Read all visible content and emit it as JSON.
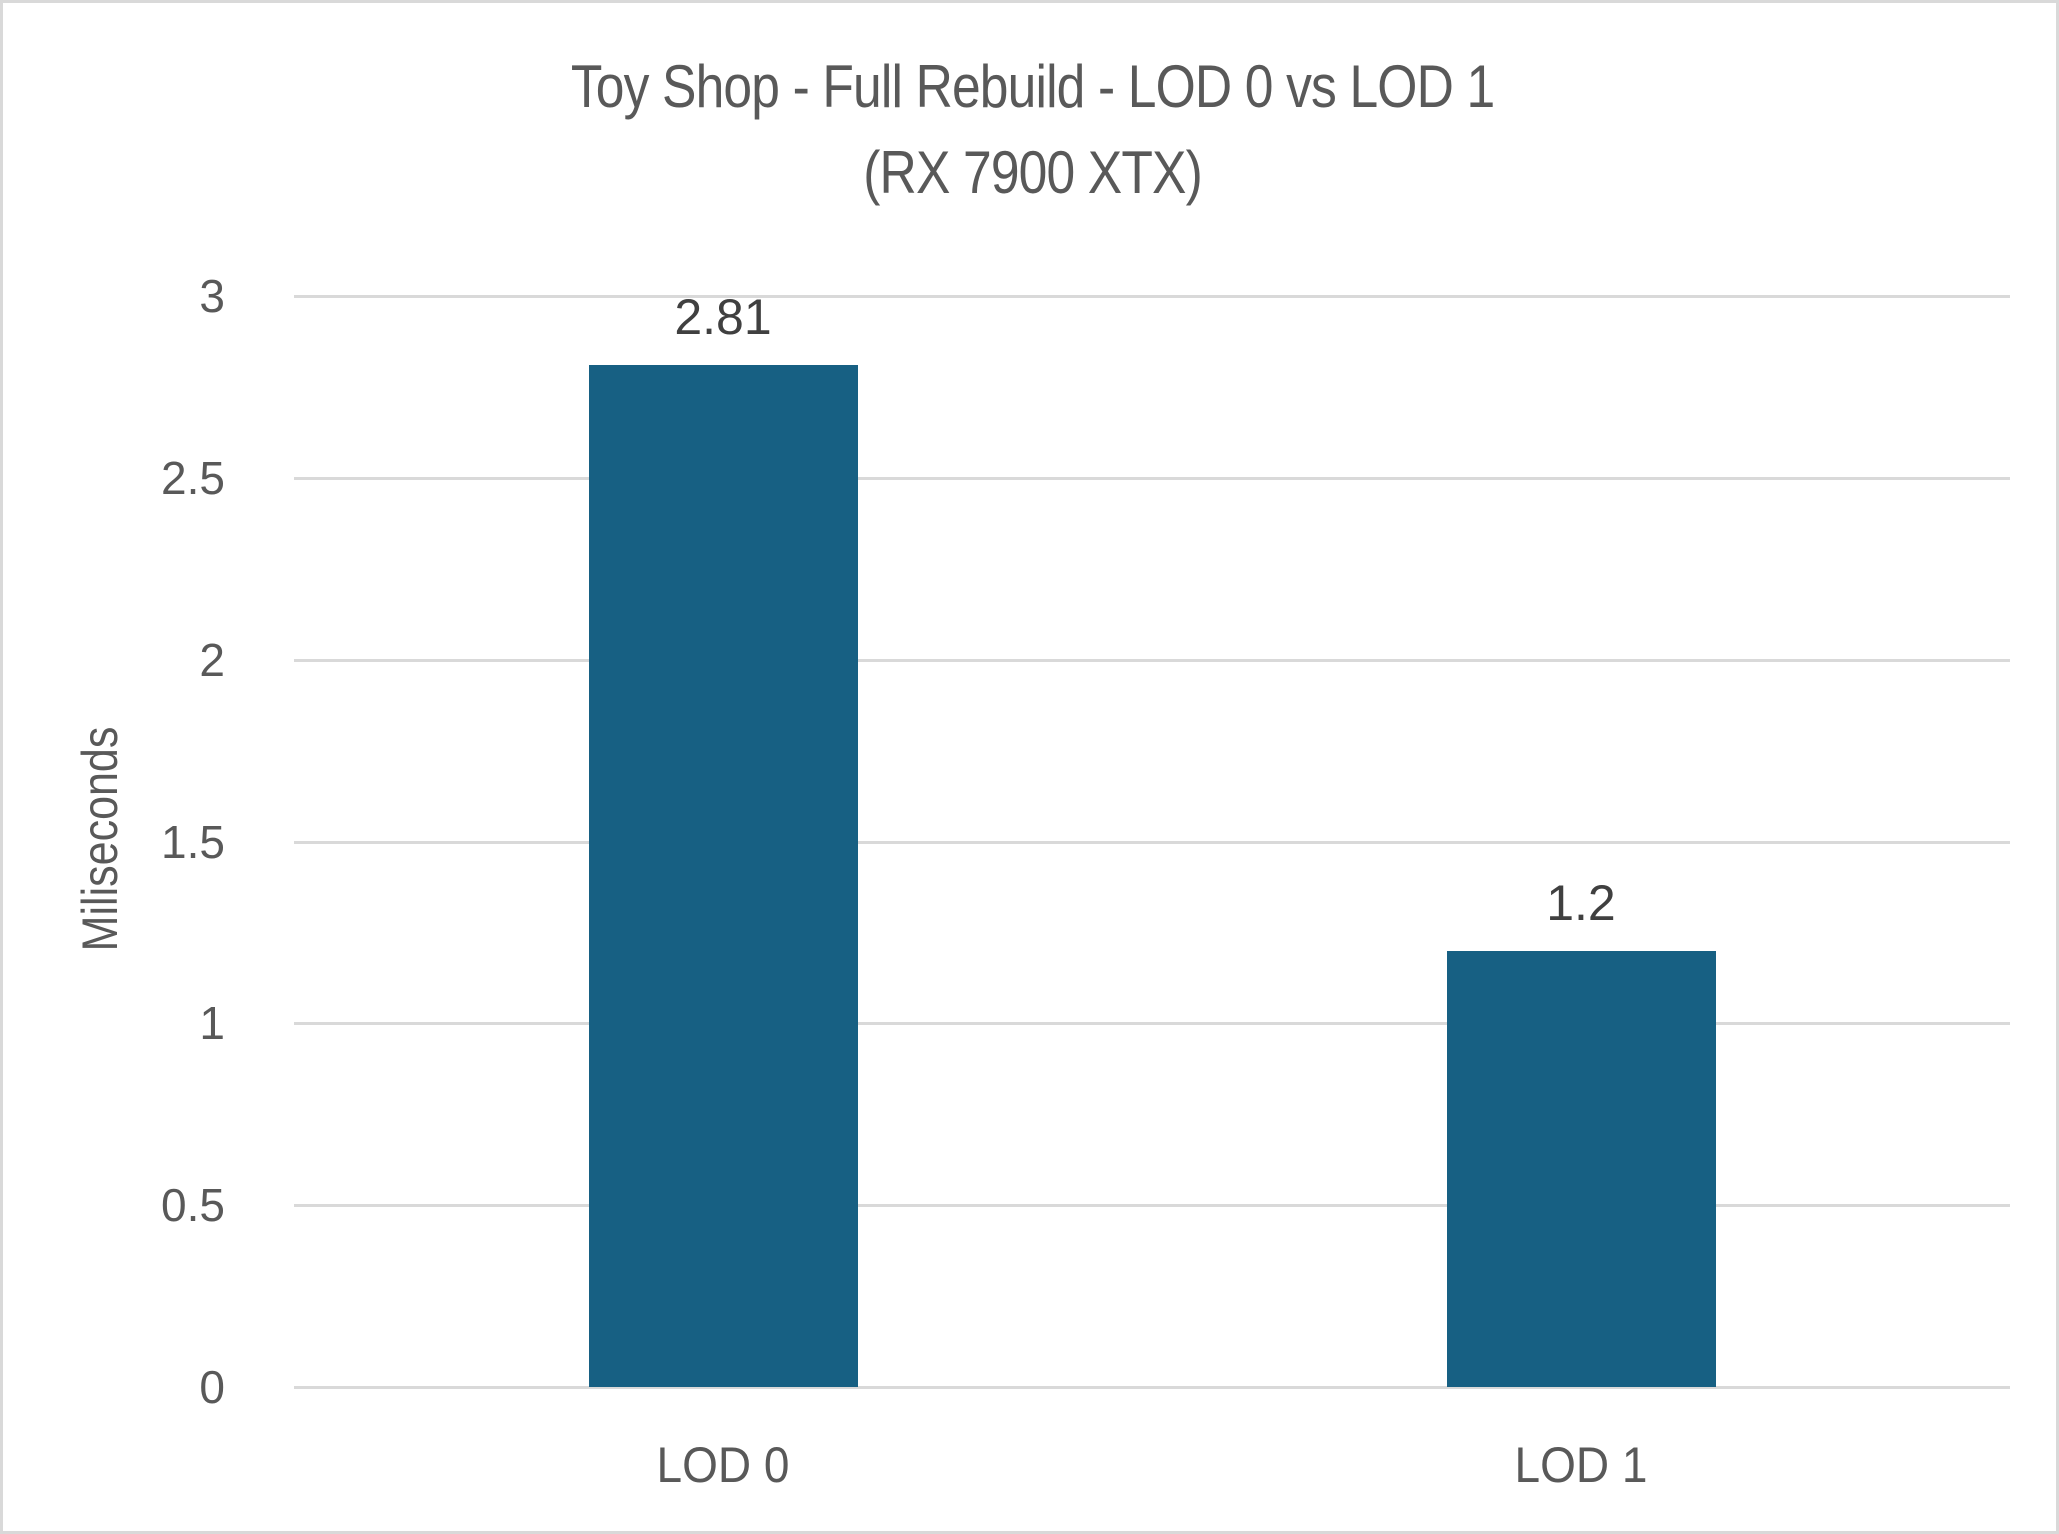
{
  "chart_data": {
    "type": "bar",
    "title": "Toy Shop - Full Rebuild - LOD 0 vs LOD 1",
    "subtitle": "(RX 7900 XTX)",
    "title_lines": [
      "Toy Shop - Full Rebuild - LOD 0 vs LOD 1",
      "(RX 7900 XTX)"
    ],
    "xlabel": "",
    "ylabel": "Miliseconds",
    "categories": [
      "LOD 0",
      "LOD 1"
    ],
    "values": [
      2.81,
      1.2
    ],
    "data_labels": [
      "2.81",
      "1.2"
    ],
    "series": [
      {
        "name": "Full Rebuild",
        "values": [
          2.81,
          1.2
        ],
        "color": "#176083"
      }
    ],
    "ylim": [
      0,
      3
    ],
    "y_ticks": [
      0,
      0.5,
      1,
      1.5,
      2,
      2.5,
      3
    ],
    "y_tick_labels": [
      "0",
      "0.5",
      "1",
      "1.5",
      "2",
      "2.5",
      "3"
    ],
    "grid": true,
    "legend": "none"
  },
  "colors": {
    "bar": "#176083",
    "gridline": "#d9d9d9",
    "text": "#595959",
    "data_label": "#404040",
    "border": "#d9d9d9"
  }
}
